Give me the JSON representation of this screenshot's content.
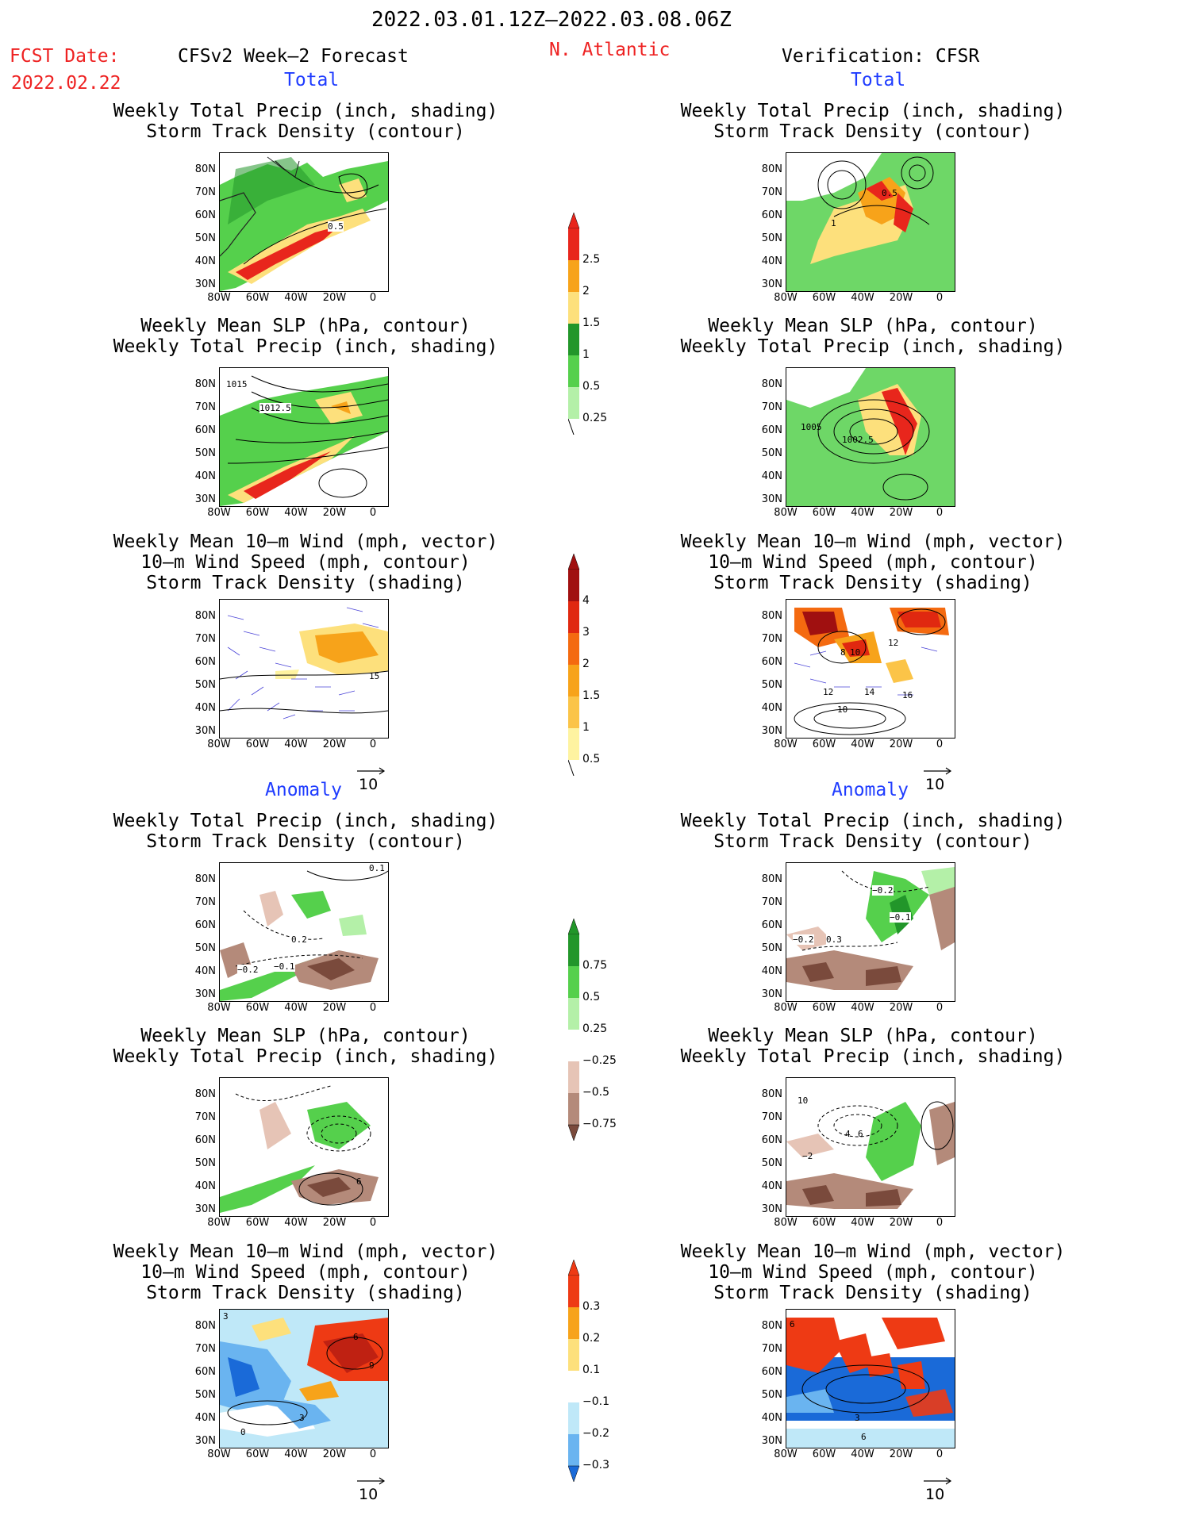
{
  "header": {
    "period": "2022.03.01.12Z—2022.03.08.06Z",
    "fcst_label": "FCST Date:",
    "fcst_date": "2022.02.22",
    "region": "N. Atlantic",
    "left_title": "CFSv2 Week—2 Forecast",
    "right_title": "Verification: CFSR"
  },
  "sections": {
    "total": "Total",
    "anomaly": "Anomaly"
  },
  "panel_titles": {
    "precip_storm": "Weekly Total Precip (inch, shading)\nStorm Track Density (contour)",
    "slp_precip": "Weekly Mean SLP (hPa, contour)\nWeekly Total Precip (inch, shading)",
    "wind_storm": "Weekly Mean 10—m Wind (mph, vector)\n10—m Wind Speed (mph, contour)\nStorm Track Density (shading)"
  },
  "axes": {
    "lat_ticks": [
      "80N",
      "70N",
      "60N",
      "50N",
      "40N",
      "30N"
    ],
    "lon_ticks": [
      "80W",
      "60W",
      "40W",
      "20W",
      "0"
    ]
  },
  "vector_ref": "10",
  "colorbars": {
    "precip_total": {
      "labels": [
        "2.5",
        "2",
        "1.5",
        "1",
        "0.5",
        "0.25"
      ],
      "colors": [
        "#e8261c",
        "#f7a31a",
        "#fde07c",
        "#22962a",
        "#55d04c",
        "#b4f0a8"
      ]
    },
    "storm_total": {
      "labels": [
        "4",
        "3",
        "2",
        "1.5",
        "1",
        "0.5"
      ],
      "colors": [
        "#a01010",
        "#e02810",
        "#f46a10",
        "#f7a31a",
        "#fbc448",
        "#fef3a0"
      ]
    },
    "precip_anom": {
      "labels": [
        "0.75",
        "0.5",
        "0.25",
        "−0.25",
        "−0.5",
        "−0.75"
      ],
      "colors": [
        "#22962a",
        "#55d04c",
        "#b4f0a8",
        "#ffffff",
        "#e6c4b6",
        "#b48a7a",
        "#7a4a3c"
      ]
    },
    "storm_anom": {
      "labels": [
        "0.3",
        "0.2",
        "0.1",
        "−0.1",
        "−0.2",
        "−0.3"
      ],
      "colors": [
        "#ee3a14",
        "#f7a31a",
        "#fde07c",
        "#ffffff",
        "#bfe8f8",
        "#6ab4f0",
        "#1a6ad8"
      ]
    }
  },
  "map_labels": {
    "l1": [
      "0.5"
    ],
    "r1": [
      "0.5",
      "1"
    ],
    "l2": [
      "1015",
      "1012.5"
    ],
    "r2": [
      "1005",
      "1002.5"
    ],
    "l3": [
      "15"
    ],
    "r3": [
      "8",
      "10",
      "12",
      "12",
      "14",
      "16",
      "10"
    ],
    "l4": [
      "0.1",
      "0.2",
      "−0.2",
      "−0.1"
    ],
    "r4": [
      "−0.2",
      "−0.1",
      "−0.2",
      "0.3"
    ],
    "l5": [
      "6"
    ],
    "r5": [
      "10",
      "4",
      "6",
      "−2"
    ],
    "l6": [
      "3",
      "6",
      "9",
      "0",
      "3"
    ],
    "r6": [
      "6",
      "3",
      "6"
    ]
  }
}
